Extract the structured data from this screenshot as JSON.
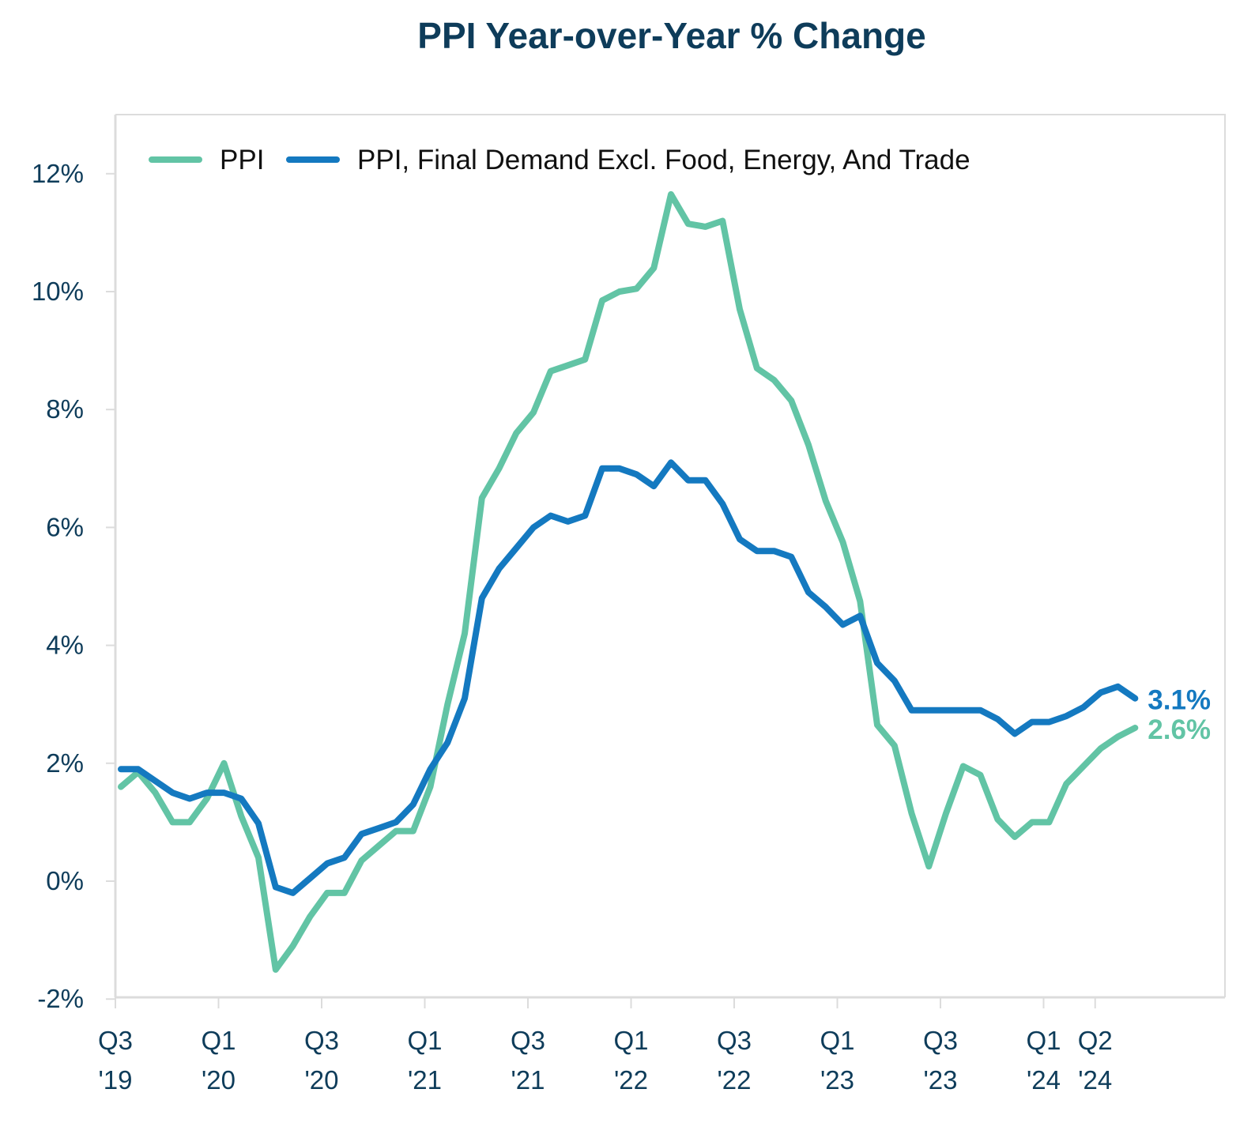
{
  "chart_data": {
    "type": "line",
    "title": "PPI Year-over-Year % Change",
    "xlabel": "",
    "ylabel": "",
    "x_start": "2019-07",
    "x_frequency": "monthly",
    "x_end": "2024-06",
    "ylim": [
      -2,
      12
    ],
    "yticks": [
      -2,
      0,
      2,
      4,
      6,
      8,
      10,
      12
    ],
    "ytick_labels": [
      "-2%",
      "0%",
      "2%",
      "4%",
      "6%",
      "8%",
      "10%",
      "12%"
    ],
    "xticks": [
      {
        "month_index": 0,
        "label": [
          "Q3",
          "'19"
        ]
      },
      {
        "month_index": 6,
        "label": [
          "Q1",
          "'20"
        ]
      },
      {
        "month_index": 12,
        "label": [
          "Q3",
          "'20"
        ]
      },
      {
        "month_index": 18,
        "label": [
          "Q1",
          "'21"
        ]
      },
      {
        "month_index": 24,
        "label": [
          "Q3",
          "'21"
        ]
      },
      {
        "month_index": 30,
        "label": [
          "Q1",
          "'22"
        ]
      },
      {
        "month_index": 36,
        "label": [
          "Q3",
          "'22"
        ]
      },
      {
        "month_index": 42,
        "label": [
          "Q1",
          "'23"
        ]
      },
      {
        "month_index": 48,
        "label": [
          "Q3",
          "'23"
        ]
      },
      {
        "month_index": 54,
        "label": [
          "Q1",
          "'24"
        ]
      },
      {
        "month_index": 57,
        "label": [
          "Q2",
          "'24"
        ]
      }
    ],
    "grid": false,
    "legend": "top-left",
    "series": [
      {
        "name": "PPI",
        "color": "#62c4a5",
        "end_label": "2.6%",
        "values": [
          1.6,
          1.85,
          1.5,
          1.0,
          1.0,
          1.4,
          2.0,
          1.1,
          0.4,
          -1.5,
          -1.1,
          -0.6,
          -0.2,
          -0.2,
          0.35,
          0.6,
          0.85,
          0.85,
          1.6,
          3.0,
          4.2,
          6.5,
          7.0,
          7.6,
          7.95,
          8.65,
          8.75,
          8.85,
          9.85,
          10.0,
          10.05,
          10.4,
          11.65,
          11.15,
          11.1,
          11.2,
          9.7,
          8.7,
          8.5,
          8.15,
          7.4,
          6.45,
          5.75,
          4.75,
          2.65,
          2.3,
          1.15,
          0.25,
          1.15,
          1.95,
          1.8,
          1.05,
          0.75,
          1.0,
          1.0,
          1.65,
          1.95,
          2.25,
          2.45,
          2.6
        ]
      },
      {
        "name": "PPI, Final Demand Excl. Food, Energy, And Trade",
        "color": "#1479c0",
        "end_label": "3.1%",
        "values": [
          1.9,
          1.9,
          1.7,
          1.5,
          1.4,
          1.5,
          1.5,
          1.4,
          0.98,
          -0.1,
          -0.2,
          0.05,
          0.3,
          0.4,
          0.8,
          0.9,
          1.0,
          1.3,
          1.9,
          2.35,
          3.1,
          4.8,
          5.3,
          5.65,
          6.0,
          6.2,
          6.1,
          6.2,
          7.0,
          7.0,
          6.9,
          6.7,
          7.1,
          6.8,
          6.8,
          6.4,
          5.8,
          5.6,
          5.6,
          5.5,
          4.9,
          4.65,
          4.35,
          4.5,
          3.7,
          3.4,
          2.9,
          2.9,
          2.9,
          2.9,
          2.9,
          2.75,
          2.5,
          2.7,
          2.7,
          2.8,
          2.95,
          3.2,
          3.3,
          3.1
        ]
      }
    ]
  }
}
